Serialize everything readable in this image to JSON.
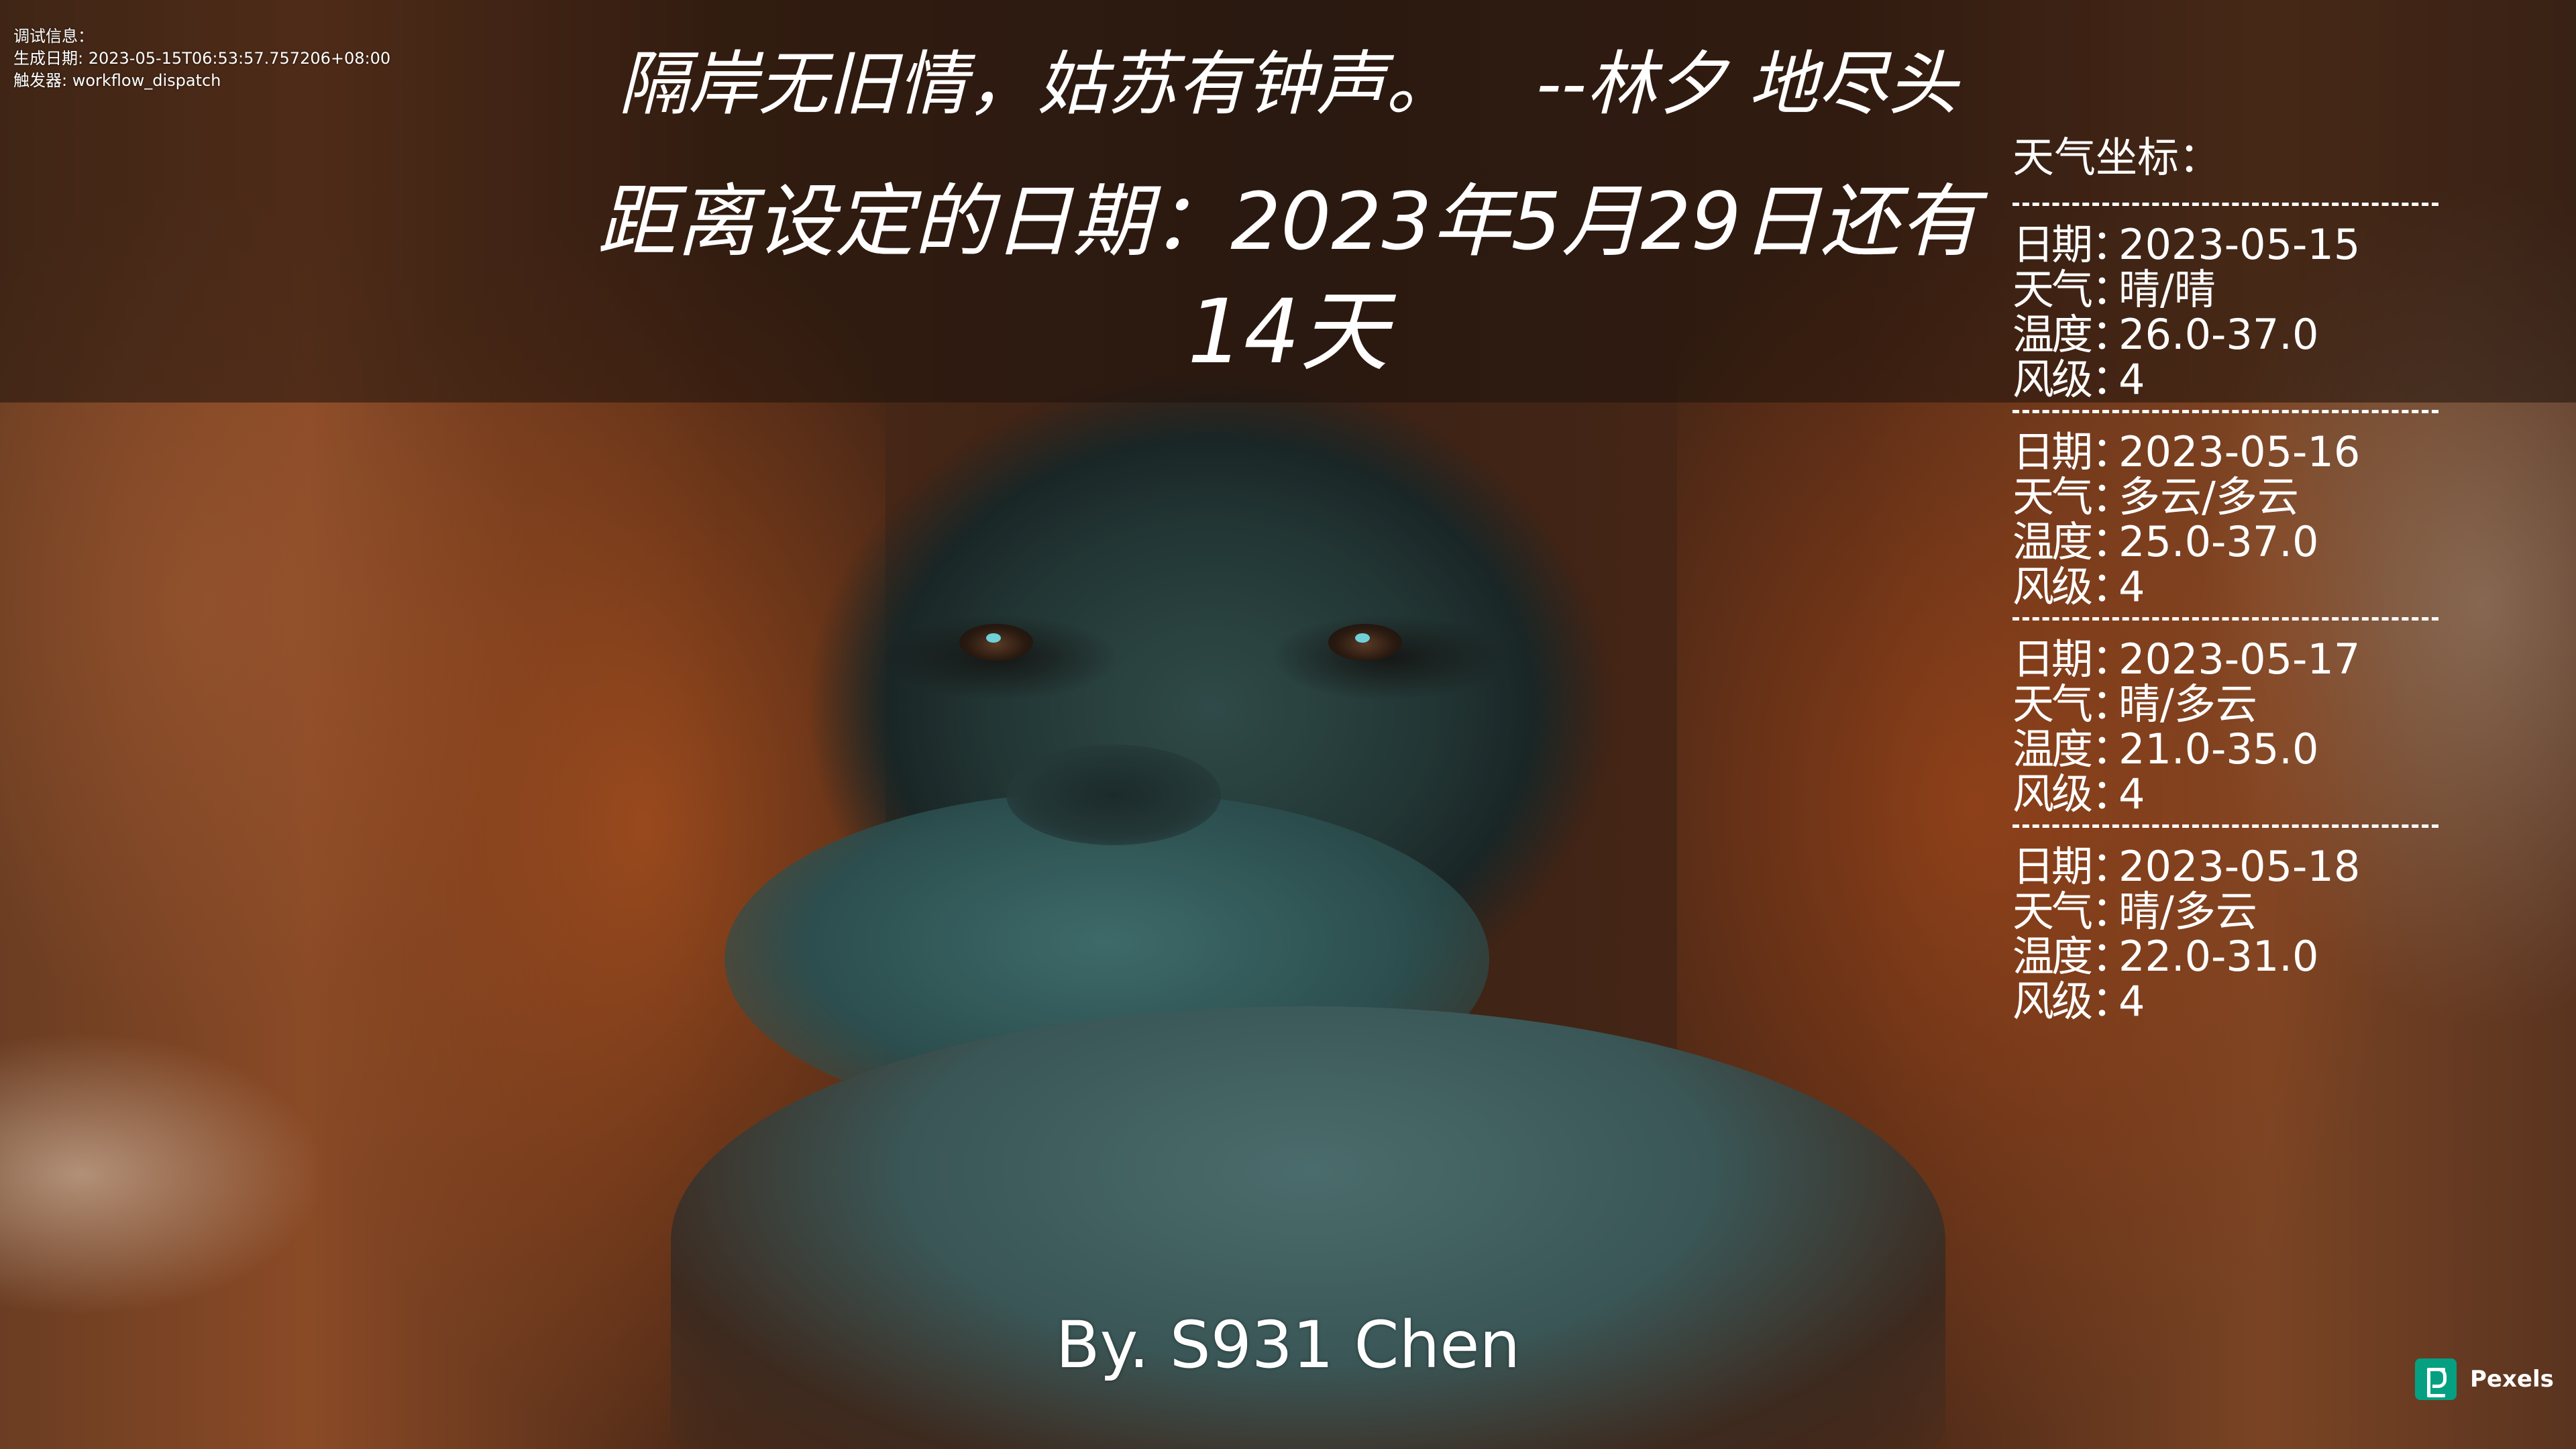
{
  "debug": {
    "lines": [
      "调试信息：",
      "生成日期: 2023-05-15T06:53:57.757206+08:00",
      "触发器: workflow_dispatch"
    ]
  },
  "quote": {
    "text": "隔岸无旧情，姑苏有钟声。",
    "author": "--林夕 地尽头"
  },
  "countdown": {
    "line": "距离设定的日期：2023年5月29日还有",
    "days": "14天"
  },
  "weather": {
    "title": "天气坐标：",
    "labels": {
      "date": "日期",
      "weather": "天气",
      "temperature": "温度",
      "wind": "风级",
      "colon": "："
    },
    "days": [
      {
        "date": "2023-05-15",
        "weather": "晴/晴",
        "temperature": "26.0-37.0",
        "wind": "4"
      },
      {
        "date": "2023-05-16",
        "weather": "多云/多云",
        "temperature": "25.0-37.0",
        "wind": "4"
      },
      {
        "date": "2023-05-17",
        "weather": "晴/多云",
        "temperature": "21.0-35.0",
        "wind": "4"
      },
      {
        "date": "2023-05-18",
        "weather": "晴/多云",
        "temperature": "22.0-31.0",
        "wind": "4"
      }
    ]
  },
  "credit": "By. S931 Chen",
  "watermark": {
    "label": "Pexels",
    "icon": "pexels-logo-icon",
    "color": "#05a081"
  }
}
